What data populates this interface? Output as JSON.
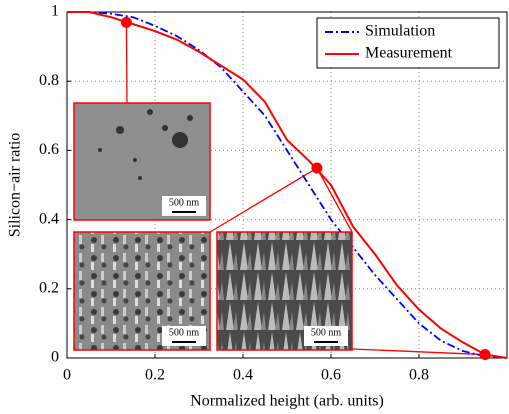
{
  "chart_data": {
    "type": "line",
    "xlabel": "Normalized height (arb. units)",
    "ylabel": "Silicon−air ratio",
    "x": [
      0,
      0.05,
      0.1,
      0.15,
      0.2,
      0.25,
      0.3,
      0.35,
      0.4,
      0.45,
      0.5,
      0.55,
      0.6,
      0.65,
      0.7,
      0.75,
      0.8,
      0.85,
      0.9,
      0.95,
      1.0
    ],
    "series": [
      {
        "name": "Simulation",
        "color": "#0000ff",
        "style": "dashdot",
        "values": [
          1,
          1,
          0.995,
          0.985,
          0.96,
          0.93,
          0.89,
          0.84,
          0.77,
          0.7,
          0.6,
          0.5,
          0.4,
          0.32,
          0.24,
          0.17,
          0.1,
          0.05,
          0.02,
          0.005,
          0
        ]
      },
      {
        "name": "Measurement",
        "color": "#ff0000",
        "style": "solid",
        "values": [
          1,
          1,
          0.985,
          0.965,
          0.945,
          0.92,
          0.885,
          0.845,
          0.805,
          0.74,
          0.63,
          0.57,
          0.5,
          0.38,
          0.3,
          0.21,
          0.14,
          0.085,
          0.045,
          0.01,
          0
        ]
      }
    ],
    "markers": {
      "color": "#ff0000",
      "x": [
        0.135,
        0.568,
        0.95
      ],
      "y": [
        0.97,
        0.549,
        0.01
      ]
    },
    "insets": [
      {
        "scale_label": "500 nm"
      },
      {
        "scale_label": "500 nm"
      },
      {
        "scale_label": "500 nm"
      }
    ],
    "xlim": [
      0,
      1
    ],
    "ylim": [
      0,
      1
    ],
    "xticks": [
      0,
      0.2,
      0.4,
      0.6,
      0.8
    ],
    "yticks": [
      0,
      0.2,
      0.4,
      0.6,
      0.8,
      1
    ],
    "grid": true,
    "legend": "upper right"
  }
}
